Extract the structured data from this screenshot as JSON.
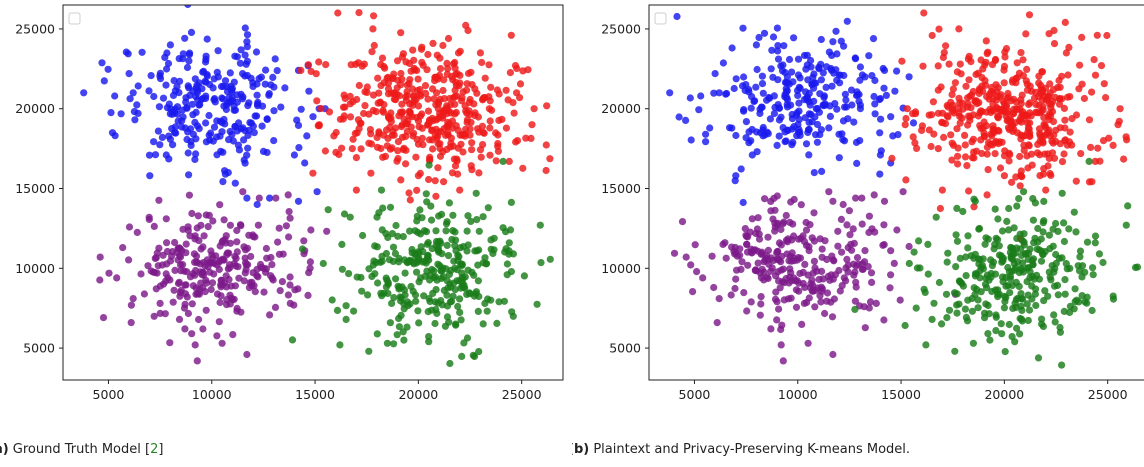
{
  "figure": {
    "panels": [
      {
        "caption_label": "(a)",
        "caption_text": "Ground Truth Model [",
        "caption_cite": "2",
        "caption_end": "]"
      },
      {
        "caption_label": "(b)",
        "caption_text": "Plaintext and Privacy-Preserving K-means Model.",
        "caption_cite": "",
        "caption_end": ""
      }
    ]
  },
  "colors": {
    "blue": "#1a1aee",
    "red": "#ee1a1a",
    "purple": "#7d1a8a",
    "green": "#1a7d1a"
  },
  "chart_data": [
    {
      "type": "scatter",
      "title": "",
      "xlabel": "",
      "ylabel": "",
      "xlim": [
        2800,
        27000
      ],
      "ylim": [
        3000,
        26500
      ],
      "xticks": [
        5000,
        10000,
        15000,
        20000,
        25000
      ],
      "yticks": [
        5000,
        10000,
        15000,
        20000,
        25000
      ],
      "xtick_labels": [
        "5000",
        "10000",
        "15000",
        "20000",
        "25000"
      ],
      "ytick_labels": [
        "5000",
        "10000",
        "15000",
        "20000",
        "25000"
      ],
      "grid": false,
      "legend": "top-left (empty)",
      "series": [
        {
          "color": "blue",
          "center": [
            10000,
            20500
          ],
          "spread": [
            2100,
            2000
          ],
          "count": 260,
          "points": [
            [
              3800,
              21000
            ],
            [
              5300,
              20800
            ],
            [
              6000,
              22200
            ],
            [
              6200,
              21000
            ],
            [
              8000,
              24000
            ],
            [
              11700,
              24200
            ],
            [
              13000,
              18000
            ],
            [
              14000,
              17100
            ],
            [
              14500,
              16600
            ],
            [
              14600,
              18300
            ],
            [
              14900,
              19500
            ],
            [
              15200,
              20000
            ],
            [
              14700,
              21100
            ],
            [
              14200,
              22400
            ],
            [
              7000,
              15800
            ],
            [
              7800,
              17100
            ],
            [
              10800,
              16000
            ],
            [
              11700,
              14400
            ],
            [
              12200,
              14000
            ],
            [
              12800,
              14400
            ],
            [
              14200,
              14200
            ],
            [
              15100,
              14800
            ],
            [
              9000,
              17700
            ],
            [
              11500,
              18800
            ],
            [
              8200,
              18500
            ]
          ]
        },
        {
          "color": "red",
          "center": [
            20300,
            19800
          ],
          "spread": [
            2200,
            2100
          ],
          "count": 420,
          "points": [
            [
              16100,
              26000
            ],
            [
              24500,
              24600
            ],
            [
              25600,
              20000
            ],
            [
              25500,
              19000
            ],
            [
              17800,
              25000
            ],
            [
              22400,
              24900
            ],
            [
              23000,
              23500
            ],
            [
              24700,
              22700
            ],
            [
              24900,
              20700
            ],
            [
              24800,
              18000
            ],
            [
              17000,
              14900
            ],
            [
              20000,
              15800
            ],
            [
              21900,
              15900
            ],
            [
              22000,
              14900
            ],
            [
              16800,
              17500
            ],
            [
              15700,
              19800
            ],
            [
              15200,
              19000
            ],
            [
              24400,
              16700
            ]
          ]
        },
        {
          "color": "purple",
          "center": [
            10200,
            10000
          ],
          "spread": [
            2100,
            1800
          ],
          "count": 270,
          "points": [
            [
              4600,
              10700
            ],
            [
              5400,
              9400
            ],
            [
              6100,
              6600
            ],
            [
              6200,
              8100
            ],
            [
              9300,
              4200
            ],
            [
              9200,
              5200
            ],
            [
              10500,
              5300
            ],
            [
              11700,
              4600
            ],
            [
              7800,
              13100
            ],
            [
              11500,
              14800
            ],
            [
              12300,
              14400
            ],
            [
              13100,
              14400
            ],
            [
              13700,
              14600
            ],
            [
              14500,
              11100
            ],
            [
              14800,
              12400
            ],
            [
              13800,
              7800
            ],
            [
              8700,
              6200
            ],
            [
              7500,
              7800
            ]
          ]
        },
        {
          "color": "green",
          "center": [
            20600,
            9800
          ],
          "spread": [
            2000,
            2000
          ],
          "count": 300,
          "points": [
            [
              15400,
              10300
            ],
            [
              16300,
              11500
            ],
            [
              16700,
              13200
            ],
            [
              16500,
              6800
            ],
            [
              16200,
              5200
            ],
            [
              17600,
              4800
            ],
            [
              18500,
              5300
            ],
            [
              19300,
              5500
            ],
            [
              20500,
              5400
            ],
            [
              21800,
              6500
            ],
            [
              22900,
              7300
            ],
            [
              23500,
              8000
            ],
            [
              24300,
              9600
            ],
            [
              24600,
              10900
            ],
            [
              24400,
              11600
            ],
            [
              25900,
              12700
            ],
            [
              22800,
              14700
            ],
            [
              21500,
              14100
            ],
            [
              20600,
              13900
            ],
            [
              23900,
              7900
            ],
            [
              24100,
              16700
            ]
          ]
        }
      ]
    },
    {
      "type": "scatter",
      "title": "",
      "xlabel": "",
      "ylabel": "",
      "xlim": [
        2800,
        27000
      ],
      "ylim": [
        3000,
        26500
      ],
      "xticks": [
        5000,
        10000,
        15000,
        20000,
        25000
      ],
      "yticks": [
        5000,
        10000,
        15000,
        20000,
        25000
      ],
      "xtick_labels": [
        "5000",
        "10000",
        "15000",
        "20000",
        "25000"
      ],
      "ytick_labels": [
        "5000",
        "10000",
        "15000",
        "20000",
        "25000"
      ],
      "grid": false,
      "legend": "top-left (empty)",
      "series": [
        {
          "color": "blue",
          "center": [
            10000,
            20500
          ],
          "spread": [
            2100,
            2000
          ],
          "count": 265,
          "points": [
            [
              3800,
              21000
            ],
            [
              5300,
              20800
            ],
            [
              6000,
              22200
            ],
            [
              6200,
              21000
            ],
            [
              8000,
              24000
            ],
            [
              11700,
              24200
            ],
            [
              13000,
              18000
            ],
            [
              14000,
              17100
            ],
            [
              14500,
              16600
            ],
            [
              14600,
              18300
            ],
            [
              14500,
              19500
            ],
            [
              14700,
              21100
            ],
            [
              14200,
              22400
            ],
            [
              7000,
              15800
            ],
            [
              7800,
              17100
            ],
            [
              10800,
              16000
            ],
            [
              9000,
              17700
            ],
            [
              11500,
              18800
            ],
            [
              8200,
              18500
            ]
          ]
        },
        {
          "color": "red",
          "center": [
            20300,
            19800
          ],
          "spread": [
            2200,
            2100
          ],
          "count": 425,
          "points": [
            [
              16100,
              26000
            ],
            [
              24500,
              24600
            ],
            [
              25600,
              20000
            ],
            [
              25500,
              19000
            ],
            [
              17800,
              25000
            ],
            [
              22400,
              24900
            ],
            [
              23000,
              23500
            ],
            [
              24700,
              22700
            ],
            [
              24900,
              20700
            ],
            [
              24800,
              18000
            ],
            [
              17000,
              14900
            ],
            [
              20000,
              15800
            ],
            [
              21900,
              15900
            ],
            [
              22000,
              14900
            ],
            [
              16800,
              17500
            ],
            [
              15700,
              19800
            ],
            [
              15300,
              20000
            ],
            [
              15200,
              19000
            ],
            [
              24400,
              16700
            ]
          ]
        },
        {
          "color": "purple",
          "center": [
            10200,
            10200
          ],
          "spread": [
            2100,
            1800
          ],
          "count": 275,
          "points": [
            [
              4600,
              10700
            ],
            [
              5400,
              9400
            ],
            [
              6100,
              6600
            ],
            [
              6200,
              8100
            ],
            [
              9300,
              4200
            ],
            [
              9200,
              5200
            ],
            [
              10500,
              5300
            ],
            [
              11700,
              4600
            ],
            [
              7800,
              13100
            ],
            [
              11700,
              14200
            ],
            [
              12200,
              14000
            ],
            [
              12800,
              14400
            ],
            [
              14200,
              14200
            ],
            [
              15100,
              14800
            ],
            [
              11500,
              14800
            ],
            [
              13100,
              14400
            ],
            [
              13700,
              14600
            ],
            [
              14500,
              11100
            ],
            [
              14800,
              12400
            ],
            [
              13800,
              7800
            ],
            [
              8700,
              6200
            ]
          ]
        },
        {
          "color": "green",
          "center": [
            20600,
            9800
          ],
          "spread": [
            2000,
            2000
          ],
          "count": 295,
          "points": [
            [
              15400,
              10300
            ],
            [
              16300,
              11500
            ],
            [
              16700,
              13200
            ],
            [
              16500,
              6800
            ],
            [
              16200,
              5200
            ],
            [
              17600,
              4800
            ],
            [
              18500,
              5300
            ],
            [
              19300,
              5500
            ],
            [
              20500,
              5400
            ],
            [
              21800,
              6500
            ],
            [
              22900,
              7300
            ],
            [
              23500,
              8000
            ],
            [
              24300,
              9600
            ],
            [
              24600,
              10900
            ],
            [
              24400,
              11600
            ],
            [
              25900,
              12700
            ],
            [
              22800,
              14700
            ],
            [
              21500,
              14100
            ],
            [
              20600,
              13900
            ],
            [
              23900,
              7900
            ],
            [
              24100,
              16700
            ]
          ]
        }
      ]
    }
  ]
}
